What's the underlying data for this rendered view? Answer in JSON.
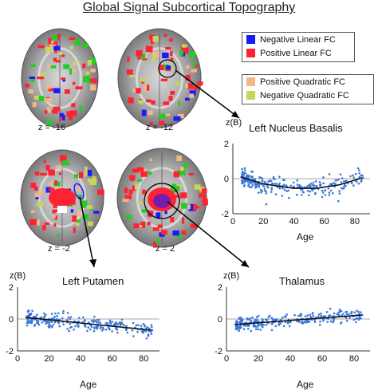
{
  "title": "Global Signal Subcortical Topography",
  "legend_linear": [
    {
      "label": "Negative Linear FC",
      "color": "#1a1aff"
    },
    {
      "label": "Positive Linear FC",
      "color": "#ff2233"
    }
  ],
  "legend_quadratic": [
    {
      "label": "Positive Quadratic FC",
      "color": "#f0b887"
    },
    {
      "label": "Negative Quadratic FC",
      "color": "#c8d45a"
    }
  ],
  "slices": [
    {
      "label": "z = -16"
    },
    {
      "label": "z = -12"
    },
    {
      "label": "z = -2"
    },
    {
      "label": "z = 2"
    }
  ],
  "chart_data": [
    {
      "type": "scatter",
      "title": "Left Nucleus Basalis",
      "ylabel": "z(B)",
      "xlabel": "Age",
      "xlim": [
        0,
        90
      ],
      "ylim": [
        -2,
        2
      ],
      "x_ticks": [
        0,
        20,
        40,
        60,
        80
      ],
      "y_ticks": [
        -2,
        0,
        2
      ],
      "point_color": "#3a78d8",
      "fit": {
        "x": [
          5,
          20,
          40,
          55,
          70,
          85
        ],
        "y": [
          0.1,
          -0.3,
          -0.55,
          -0.55,
          -0.35,
          0.05
        ]
      }
    },
    {
      "type": "scatter",
      "title": "Left Putamen",
      "ylabel": "z(B)",
      "xlabel": "Age",
      "xlim": [
        0,
        90
      ],
      "ylim": [
        -2,
        2
      ],
      "x_ticks": [
        0,
        20,
        40,
        60,
        80
      ],
      "y_ticks": [
        -2,
        0,
        2
      ],
      "point_color": "#3a78d8",
      "fit": {
        "x": [
          5,
          25,
          45,
          65,
          85
        ],
        "y": [
          0.1,
          -0.1,
          -0.3,
          -0.5,
          -0.7
        ]
      }
    },
    {
      "type": "scatter",
      "title": "Thalamus",
      "ylabel": "z(B)",
      "xlabel": "Age",
      "xlim": [
        0,
        90
      ],
      "ylim": [
        -2,
        2
      ],
      "x_ticks": [
        0,
        20,
        40,
        60,
        80
      ],
      "y_ticks": [
        -2,
        0,
        2
      ],
      "point_color": "#3a78d8",
      "fit": {
        "x": [
          5,
          25,
          45,
          65,
          85
        ],
        "y": [
          -0.35,
          -0.2,
          -0.05,
          0.1,
          0.25
        ]
      }
    }
  ]
}
